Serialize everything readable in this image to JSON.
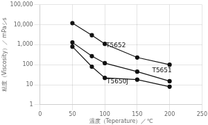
{
  "chart_data": {
    "type": "line",
    "log": "y",
    "grid": true,
    "color": "#111111",
    "marker": "circle",
    "x_label": "温度（Teperature）／℃",
    "y_label": "粘度（Viscosity）／ mPaシs",
    "x": [
      50,
      80,
      100,
      150,
      200
    ],
    "series": [
      {
        "values": [
          12000,
          3000,
          1100,
          230,
          100
        ]
      },
      {
        "values": [
          1300,
          270,
          120,
          45,
          15
        ]
      },
      {
        "values": [
          800,
          80,
          22,
          18,
          8
        ]
      }
    ],
    "annotations": [
      {
        "text": "T5652",
        "x": 102,
        "y": 900
      },
      {
        "text": "T5651",
        "x": 173,
        "y": 50
      },
      {
        "text": "T5650J",
        "x": 103,
        "y": 14
      }
    ],
    "xlim": [
      0,
      250
    ],
    "xticks": [
      0,
      50,
      100,
      150,
      200,
      250
    ],
    "ylim": [
      1,
      100000
    ],
    "yticks": [
      1,
      10,
      100,
      {
        "value": 1000,
        "label": "1,000"
      },
      {
        "value": 10000,
        "label": "10,000"
      },
      {
        "value": 100000,
        "label": "100,000"
      }
    ]
  }
}
